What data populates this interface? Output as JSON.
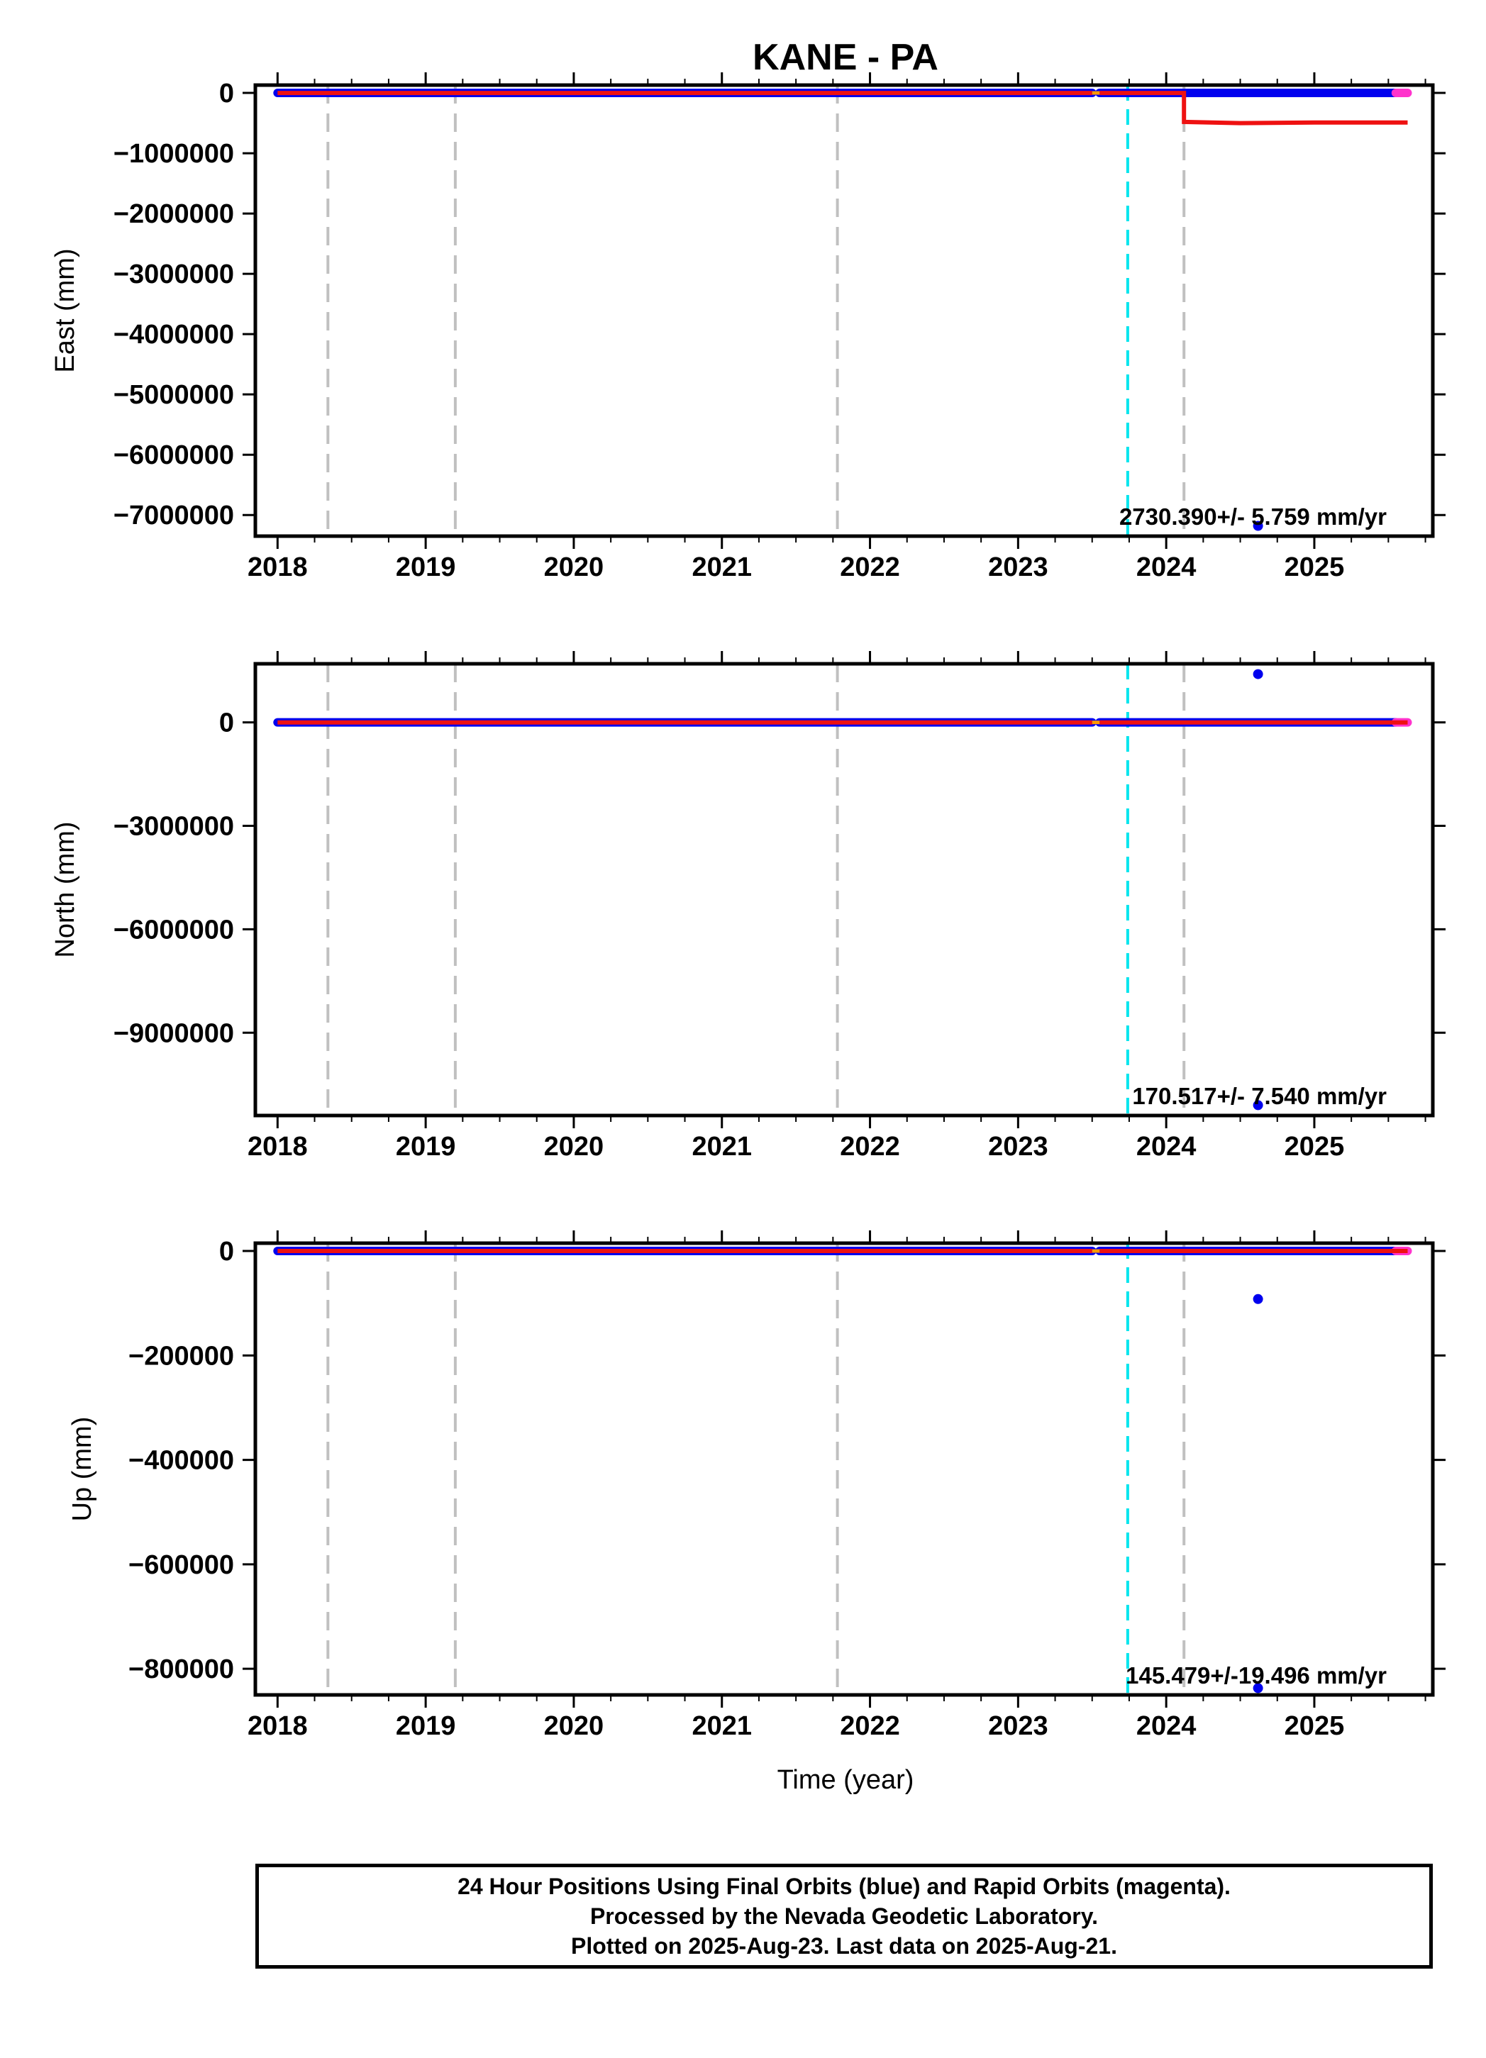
{
  "title": "KANE - PA",
  "xlabel": "Time (year)",
  "footer": {
    "line1": "24 Hour Positions Using Final Orbits (blue) and Rapid Orbits (magenta).",
    "line2": "Processed by the Nevada Geodetic Laboratory.",
    "line3": "Plotted on 2025-Aug-23. Last data on 2025-Aug-21."
  },
  "colors": {
    "final": "#0000ee",
    "rapid": "#ff33cc",
    "model": "#ee1111",
    "gap": "#ff9900",
    "equipment_change": "#c0c0c0",
    "earthquake": "#00e5ee"
  },
  "chart_data": [
    {
      "type": "scatter",
      "ylabel": "East (mm)",
      "xlim": [
        2017.85,
        2025.8
      ],
      "ylim": [
        -7350000,
        130000
      ],
      "x_ticks": [
        2018,
        2019,
        2020,
        2021,
        2022,
        2023,
        2024,
        2025
      ],
      "x_tick_labels": [
        "2018",
        "2019",
        "2020",
        "2021",
        "2022",
        "2023",
        "2024",
        "2025"
      ],
      "y_ticks": [
        0,
        -1000000,
        -2000000,
        -3000000,
        -4000000,
        -5000000,
        -6000000,
        -7000000
      ],
      "y_tick_labels": [
        "0",
        "−1000000",
        "−2000000",
        "−3000000",
        "−4000000",
        "−5000000",
        "−6000000",
        "−7000000"
      ],
      "final_series": [
        [
          2018.0,
          2023.5,
          0
        ],
        [
          2023.55,
          2025.55,
          0
        ]
      ],
      "rapid_series": [
        [
          2025.55,
          2025.63,
          0
        ]
      ],
      "outliers": [
        [
          2024.62,
          -7180000
        ]
      ],
      "model": [
        [
          2018.0,
          0
        ],
        [
          2023.5,
          0
        ],
        [
          2023.55,
          0
        ],
        [
          2024.12,
          0
        ],
        [
          2024.12,
          -480000
        ],
        [
          2024.5,
          -500000
        ],
        [
          2025.0,
          -490000
        ],
        [
          2025.63,
          -490000
        ]
      ],
      "gaps": [
        [
          2023.5,
          2023.55
        ]
      ],
      "equipment_changes": [
        2018.34,
        2019.2,
        2021.78,
        2024.12
      ],
      "earthquakes": [
        2023.74
      ],
      "rate": "2730.390+/- 5.759 mm/yr"
    },
    {
      "type": "scatter",
      "ylabel": "North (mm)",
      "xlim": [
        2017.85,
        2025.8
      ],
      "ylim": [
        -11400000,
        1700000
      ],
      "x_ticks": [
        2018,
        2019,
        2020,
        2021,
        2022,
        2023,
        2024,
        2025
      ],
      "x_tick_labels": [
        "2018",
        "2019",
        "2020",
        "2021",
        "2022",
        "2023",
        "2024",
        "2025"
      ],
      "y_ticks": [
        0,
        -3000000,
        -6000000,
        -9000000
      ],
      "y_tick_labels": [
        "0",
        "−3000000",
        "−6000000",
        "−9000000"
      ],
      "final_series": [
        [
          2018.0,
          2023.5,
          0
        ],
        [
          2023.55,
          2025.55,
          0
        ]
      ],
      "rapid_series": [
        [
          2025.55,
          2025.63,
          0
        ]
      ],
      "outliers": [
        [
          2024.62,
          1400000
        ],
        [
          2024.62,
          -11100000
        ]
      ],
      "model": [
        [
          2018.0,
          0
        ],
        [
          2023.5,
          0
        ],
        [
          2023.55,
          0
        ],
        [
          2025.63,
          0
        ]
      ],
      "gaps": [
        [
          2023.5,
          2023.55
        ]
      ],
      "equipment_changes": [
        2018.34,
        2019.2,
        2021.78,
        2024.12
      ],
      "earthquakes": [
        2023.74
      ],
      "rate": "170.517+/- 7.540 mm/yr"
    },
    {
      "type": "scatter",
      "ylabel": "Up (mm)",
      "xlim": [
        2017.85,
        2025.8
      ],
      "ylim": [
        -850000,
        15000
      ],
      "x_ticks": [
        2018,
        2019,
        2020,
        2021,
        2022,
        2023,
        2024,
        2025
      ],
      "x_tick_labels": [
        "2018",
        "2019",
        "2020",
        "2021",
        "2022",
        "2023",
        "2024",
        "2025"
      ],
      "y_ticks": [
        0,
        -200000,
        -400000,
        -600000,
        -800000
      ],
      "y_tick_labels": [
        "0",
        "−200000",
        "−400000",
        "−600000",
        "−800000"
      ],
      "final_series": [
        [
          2018.0,
          2023.5,
          0
        ],
        [
          2023.55,
          2025.55,
          0
        ]
      ],
      "rapid_series": [
        [
          2025.55,
          2025.63,
          0
        ]
      ],
      "outliers": [
        [
          2024.62,
          -92000
        ],
        [
          2024.62,
          -837000
        ]
      ],
      "model": [
        [
          2018.0,
          0
        ],
        [
          2023.5,
          0
        ],
        [
          2023.55,
          0
        ],
        [
          2025.63,
          0
        ]
      ],
      "gaps": [
        [
          2023.5,
          2023.55
        ]
      ],
      "equipment_changes": [
        2018.34,
        2019.2,
        2021.78,
        2024.12
      ],
      "earthquakes": [
        2023.74
      ],
      "rate": "145.479+/-19.496 mm/yr"
    }
  ]
}
